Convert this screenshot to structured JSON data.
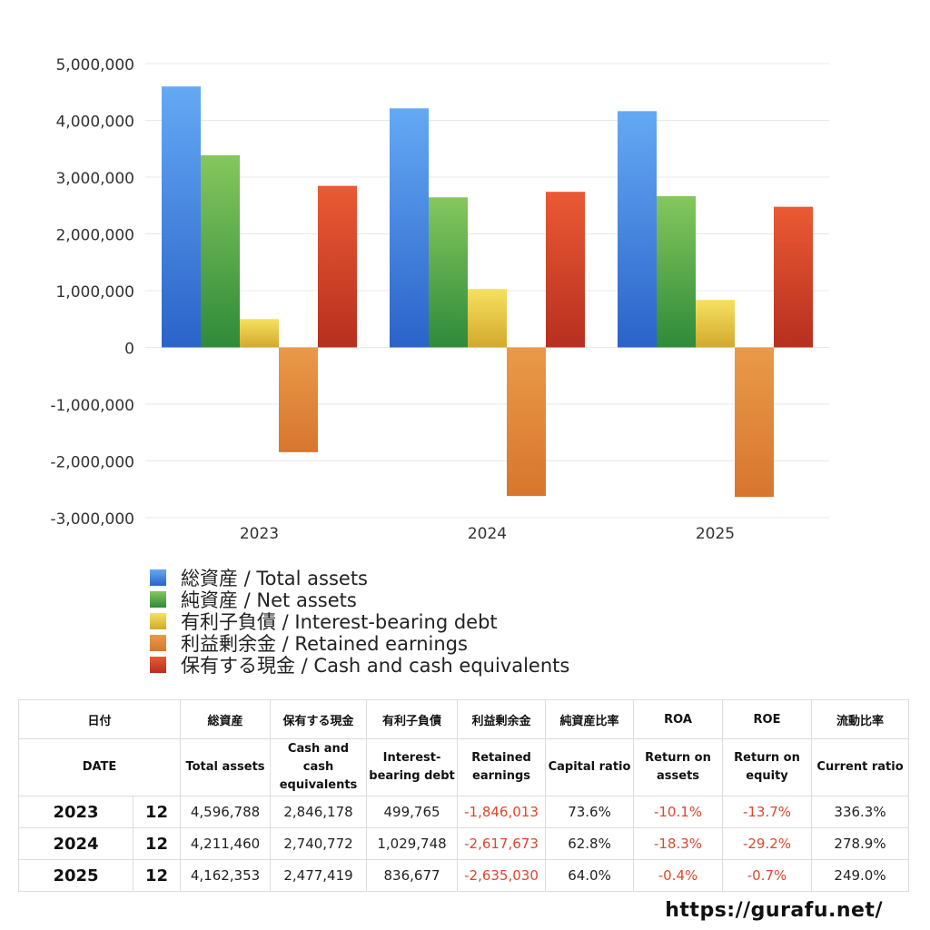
{
  "chart_data": {
    "type": "bar",
    "categories": [
      "2023",
      "2024",
      "2025"
    ],
    "ylim": [
      -3000000,
      5000000
    ],
    "yticks": [
      5000000,
      4000000,
      3000000,
      2000000,
      1000000,
      0,
      -1000000,
      -2000000,
      -3000000
    ],
    "ytick_labels": [
      "5,000,000",
      "4,000,000",
      "3,000,000",
      "2,000,000",
      "1,000,000",
      "0",
      "-1,000,000",
      "-2,000,000",
      "-3,000,000"
    ],
    "grid": true,
    "legend_position": "bottom",
    "series": [
      {
        "name": "総資産 / Total assets",
        "values": [
          4596788,
          4211460,
          4162353
        ],
        "color_top": "#64a9f4",
        "color_bottom": "#2b63c9"
      },
      {
        "name": "純資産 / Net assets",
        "values": [
          3384101,
          2643815,
          2663757
        ],
        "color_top": "#85c75d",
        "color_bottom": "#2f8a3a"
      },
      {
        "name": "有利子負債 / Interest-bearing debt",
        "values": [
          499765,
          1029748,
          836677
        ],
        "color_top": "#f6e160",
        "color_bottom": "#d2a92c"
      },
      {
        "name": "利益剰余金 / Retained earnings",
        "values": [
          -1846013,
          -2617673,
          -2635030
        ],
        "color_top": "#e99a48",
        "color_bottom": "#d7762e"
      },
      {
        "name": "保有する現金 /  Cash and cash equivalents",
        "values": [
          2846178,
          2740772,
          2477419
        ],
        "color_top": "#ea5a34",
        "color_bottom": "#b72f1f"
      }
    ]
  },
  "table": {
    "headers_jp": [
      "日付",
      "",
      "総資産",
      "保有する現金",
      "有利子負債",
      "利益剰余金",
      "純資産比率",
      "ROA",
      "ROE",
      "流動比率"
    ],
    "headers_en": [
      "DATE",
      "",
      "Total assets",
      "Cash and cash equivalents",
      "Interest-bearing debt",
      "Retained earnings",
      "Capital ratio",
      "Return on assets",
      "Return on equity",
      "Current ratio"
    ],
    "rows": [
      {
        "year": "2023",
        "month": "12",
        "total_assets": "4,596,788",
        "cash": "2,846,178",
        "debt": "499,765",
        "retained": "-1,846,013",
        "capital_ratio": "73.6%",
        "roa": "-10.1%",
        "roe": "-13.7%",
        "current_ratio": "336.3%"
      },
      {
        "year": "2024",
        "month": "12",
        "total_assets": "4,211,460",
        "cash": "2,740,772",
        "debt": "1,029,748",
        "retained": "-2,617,673",
        "capital_ratio": "62.8%",
        "roa": "-18.3%",
        "roe": "-29.2%",
        "current_ratio": "278.9%"
      },
      {
        "year": "2025",
        "month": "12",
        "total_assets": "4,162,353",
        "cash": "2,477,419",
        "debt": "836,677",
        "retained": "-2,635,030",
        "capital_ratio": "64.0%",
        "roa": "-0.4%",
        "roe": "-0.7%",
        "current_ratio": "249.0%"
      }
    ]
  },
  "footer": {
    "url": "https://gurafu.net/"
  }
}
